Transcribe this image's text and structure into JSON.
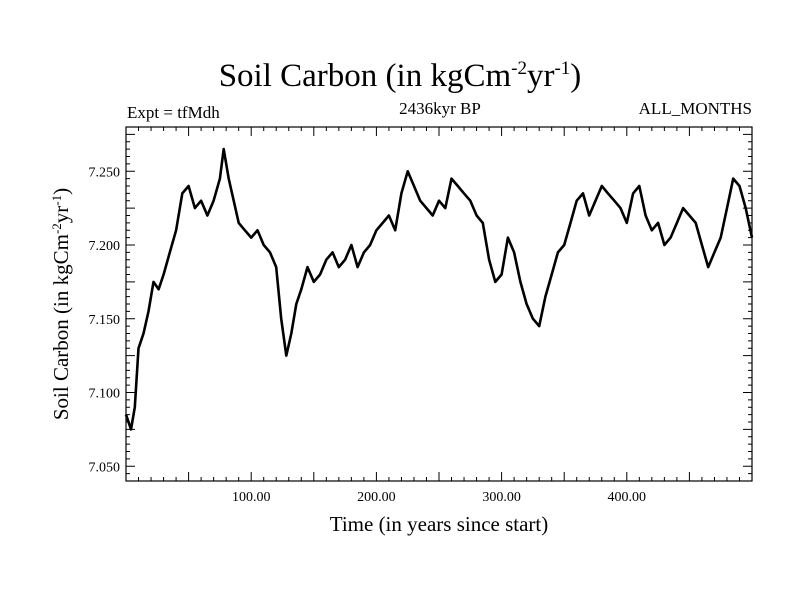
{
  "chart_data": {
    "type": "line",
    "title": "Soil Carbon (in kgCm",
    "title_units": {
      "exp1": "-2",
      "mid": "yr",
      "exp2": "-1",
      "close": ")"
    },
    "subtitles": {
      "left": "Expt = tfMdh",
      "center": "2436kyr BP",
      "right": "ALL_MONTHS"
    },
    "xlabel": "Time (in years since start)",
    "ylabel": "Soil Carbon (in kgCm",
    "ylabel_units": {
      "exp1": "-2",
      "mid": "yr",
      "exp2": "-1",
      "close": ")"
    },
    "xlim": [
      0,
      500
    ],
    "ylim": [
      7.04,
      7.28
    ],
    "xticks": [
      100,
      200,
      300,
      400
    ],
    "xtick_labels": [
      "100.00",
      "200.00",
      "300.00",
      "400.00"
    ],
    "yticks": [
      7.05,
      7.1,
      7.15,
      7.2,
      7.25
    ],
    "ytick_labels": [
      "7.050",
      "7.100",
      "7.150",
      "7.200",
      "7.250"
    ],
    "series": [
      {
        "name": "Soil Carbon",
        "color": "#000000",
        "x": [
          0,
          4,
          7,
          10,
          14,
          18,
          22,
          26,
          30,
          35,
          40,
          45,
          50,
          55,
          60,
          65,
          70,
          75,
          78,
          82,
          86,
          90,
          95,
          100,
          105,
          110,
          115,
          120,
          124,
          128,
          132,
          136,
          140,
          145,
          150,
          155,
          160,
          165,
          170,
          175,
          180,
          185,
          190,
          195,
          200,
          205,
          210,
          215,
          220,
          225,
          230,
          235,
          240,
          245,
          250,
          255,
          260,
          265,
          270,
          275,
          280,
          285,
          290,
          295,
          300,
          305,
          310,
          315,
          320,
          325,
          330,
          335,
          340,
          345,
          350,
          355,
          360,
          365,
          370,
          375,
          380,
          385,
          390,
          395,
          400,
          405,
          410,
          415,
          420,
          425,
          430,
          435,
          440,
          445,
          450,
          455,
          460,
          465,
          470,
          475,
          480,
          485,
          490,
          495,
          500
        ],
        "values": [
          7.085,
          7.075,
          7.09,
          7.13,
          7.14,
          7.155,
          7.175,
          7.17,
          7.18,
          7.195,
          7.21,
          7.235,
          7.24,
          7.225,
          7.23,
          7.22,
          7.23,
          7.245,
          7.265,
          7.245,
          7.23,
          7.215,
          7.21,
          7.205,
          7.21,
          7.2,
          7.195,
          7.185,
          7.15,
          7.125,
          7.14,
          7.16,
          7.17,
          7.185,
          7.175,
          7.18,
          7.19,
          7.195,
          7.185,
          7.19,
          7.2,
          7.185,
          7.195,
          7.2,
          7.21,
          7.215,
          7.22,
          7.21,
          7.235,
          7.25,
          7.24,
          7.23,
          7.225,
          7.22,
          7.23,
          7.225,
          7.245,
          7.24,
          7.235,
          7.23,
          7.22,
          7.215,
          7.19,
          7.175,
          7.18,
          7.205,
          7.195,
          7.175,
          7.16,
          7.15,
          7.145,
          7.165,
          7.18,
          7.195,
          7.2,
          7.215,
          7.23,
          7.235,
          7.22,
          7.23,
          7.24,
          7.235,
          7.23,
          7.225,
          7.215,
          7.235,
          7.24,
          7.22,
          7.21,
          7.215,
          7.2,
          7.205,
          7.215,
          7.225,
          7.22,
          7.215,
          7.2,
          7.185,
          7.195,
          7.205,
          7.225,
          7.245,
          7.24,
          7.225,
          7.205
        ]
      }
    ]
  }
}
